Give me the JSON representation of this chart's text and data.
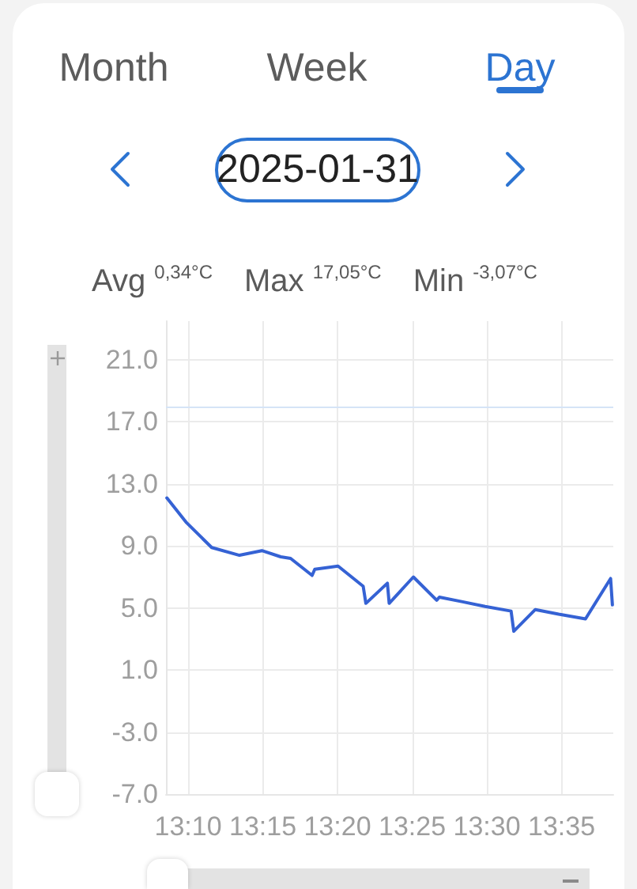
{
  "chart_data": {
    "type": "line",
    "title": "2025-01-31",
    "annotations": [
      "Month",
      "Week",
      "Day",
      "Avg $^{0,34°C}$",
      "Max $^{17,05°C}$",
      "Min $^{-3,07°C}$"
    ],
    "x": [
      13.143,
      13.165,
      13.193,
      13.224,
      13.249,
      13.27,
      13.281,
      13.305,
      13.308,
      13.334,
      13.362,
      13.365,
      13.389,
      13.391,
      13.418,
      13.444,
      13.447,
      13.473,
      13.498,
      13.527,
      13.53,
      13.554,
      13.58,
      13.61,
      13.638,
      13.64
    ],
    "values": [
      12.1,
      10.5,
      8.9,
      8.4,
      8.7,
      8.3,
      8.2,
      7.1,
      7.5,
      7.7,
      6.4,
      5.3,
      6.6,
      5.3,
      7.0,
      5.5,
      5.7,
      5.4,
      5.1,
      4.8,
      3.5,
      4.9,
      4.6,
      4.3,
      6.9,
      5.2
    ],
    "color": "#3562d4",
    "xlim": [
      13.142,
      13.641
    ],
    "xticks": [
      {
        "value": 13.1667,
        "label": "13:10"
      },
      {
        "value": 13.25,
        "label": "13:15"
      },
      {
        "value": 13.3333,
        "label": "13:20"
      },
      {
        "value": 13.4167,
        "label": "13:25"
      },
      {
        "value": 13.5,
        "label": "13:30"
      },
      {
        "value": 13.5833,
        "label": "13:35"
      }
    ],
    "ylim": [
      -7,
      23.5
    ],
    "yticks": [
      {
        "value": -7,
        "label": "-7.0"
      },
      {
        "value": -3,
        "label": "-3.0"
      },
      {
        "value": 1,
        "label": "1.0"
      },
      {
        "value": 5,
        "label": "5.0"
      },
      {
        "value": 9,
        "label": "9.0"
      },
      {
        "value": 13,
        "label": "13.0"
      },
      {
        "value": 17,
        "label": "17.0"
      },
      {
        "value": 21,
        "label": "21.0"
      }
    ],
    "grid": true,
    "ref_lines": [
      {
        "axis": "y",
        "value": 18,
        "color": "#d5e4f7"
      }
    ]
  }
}
